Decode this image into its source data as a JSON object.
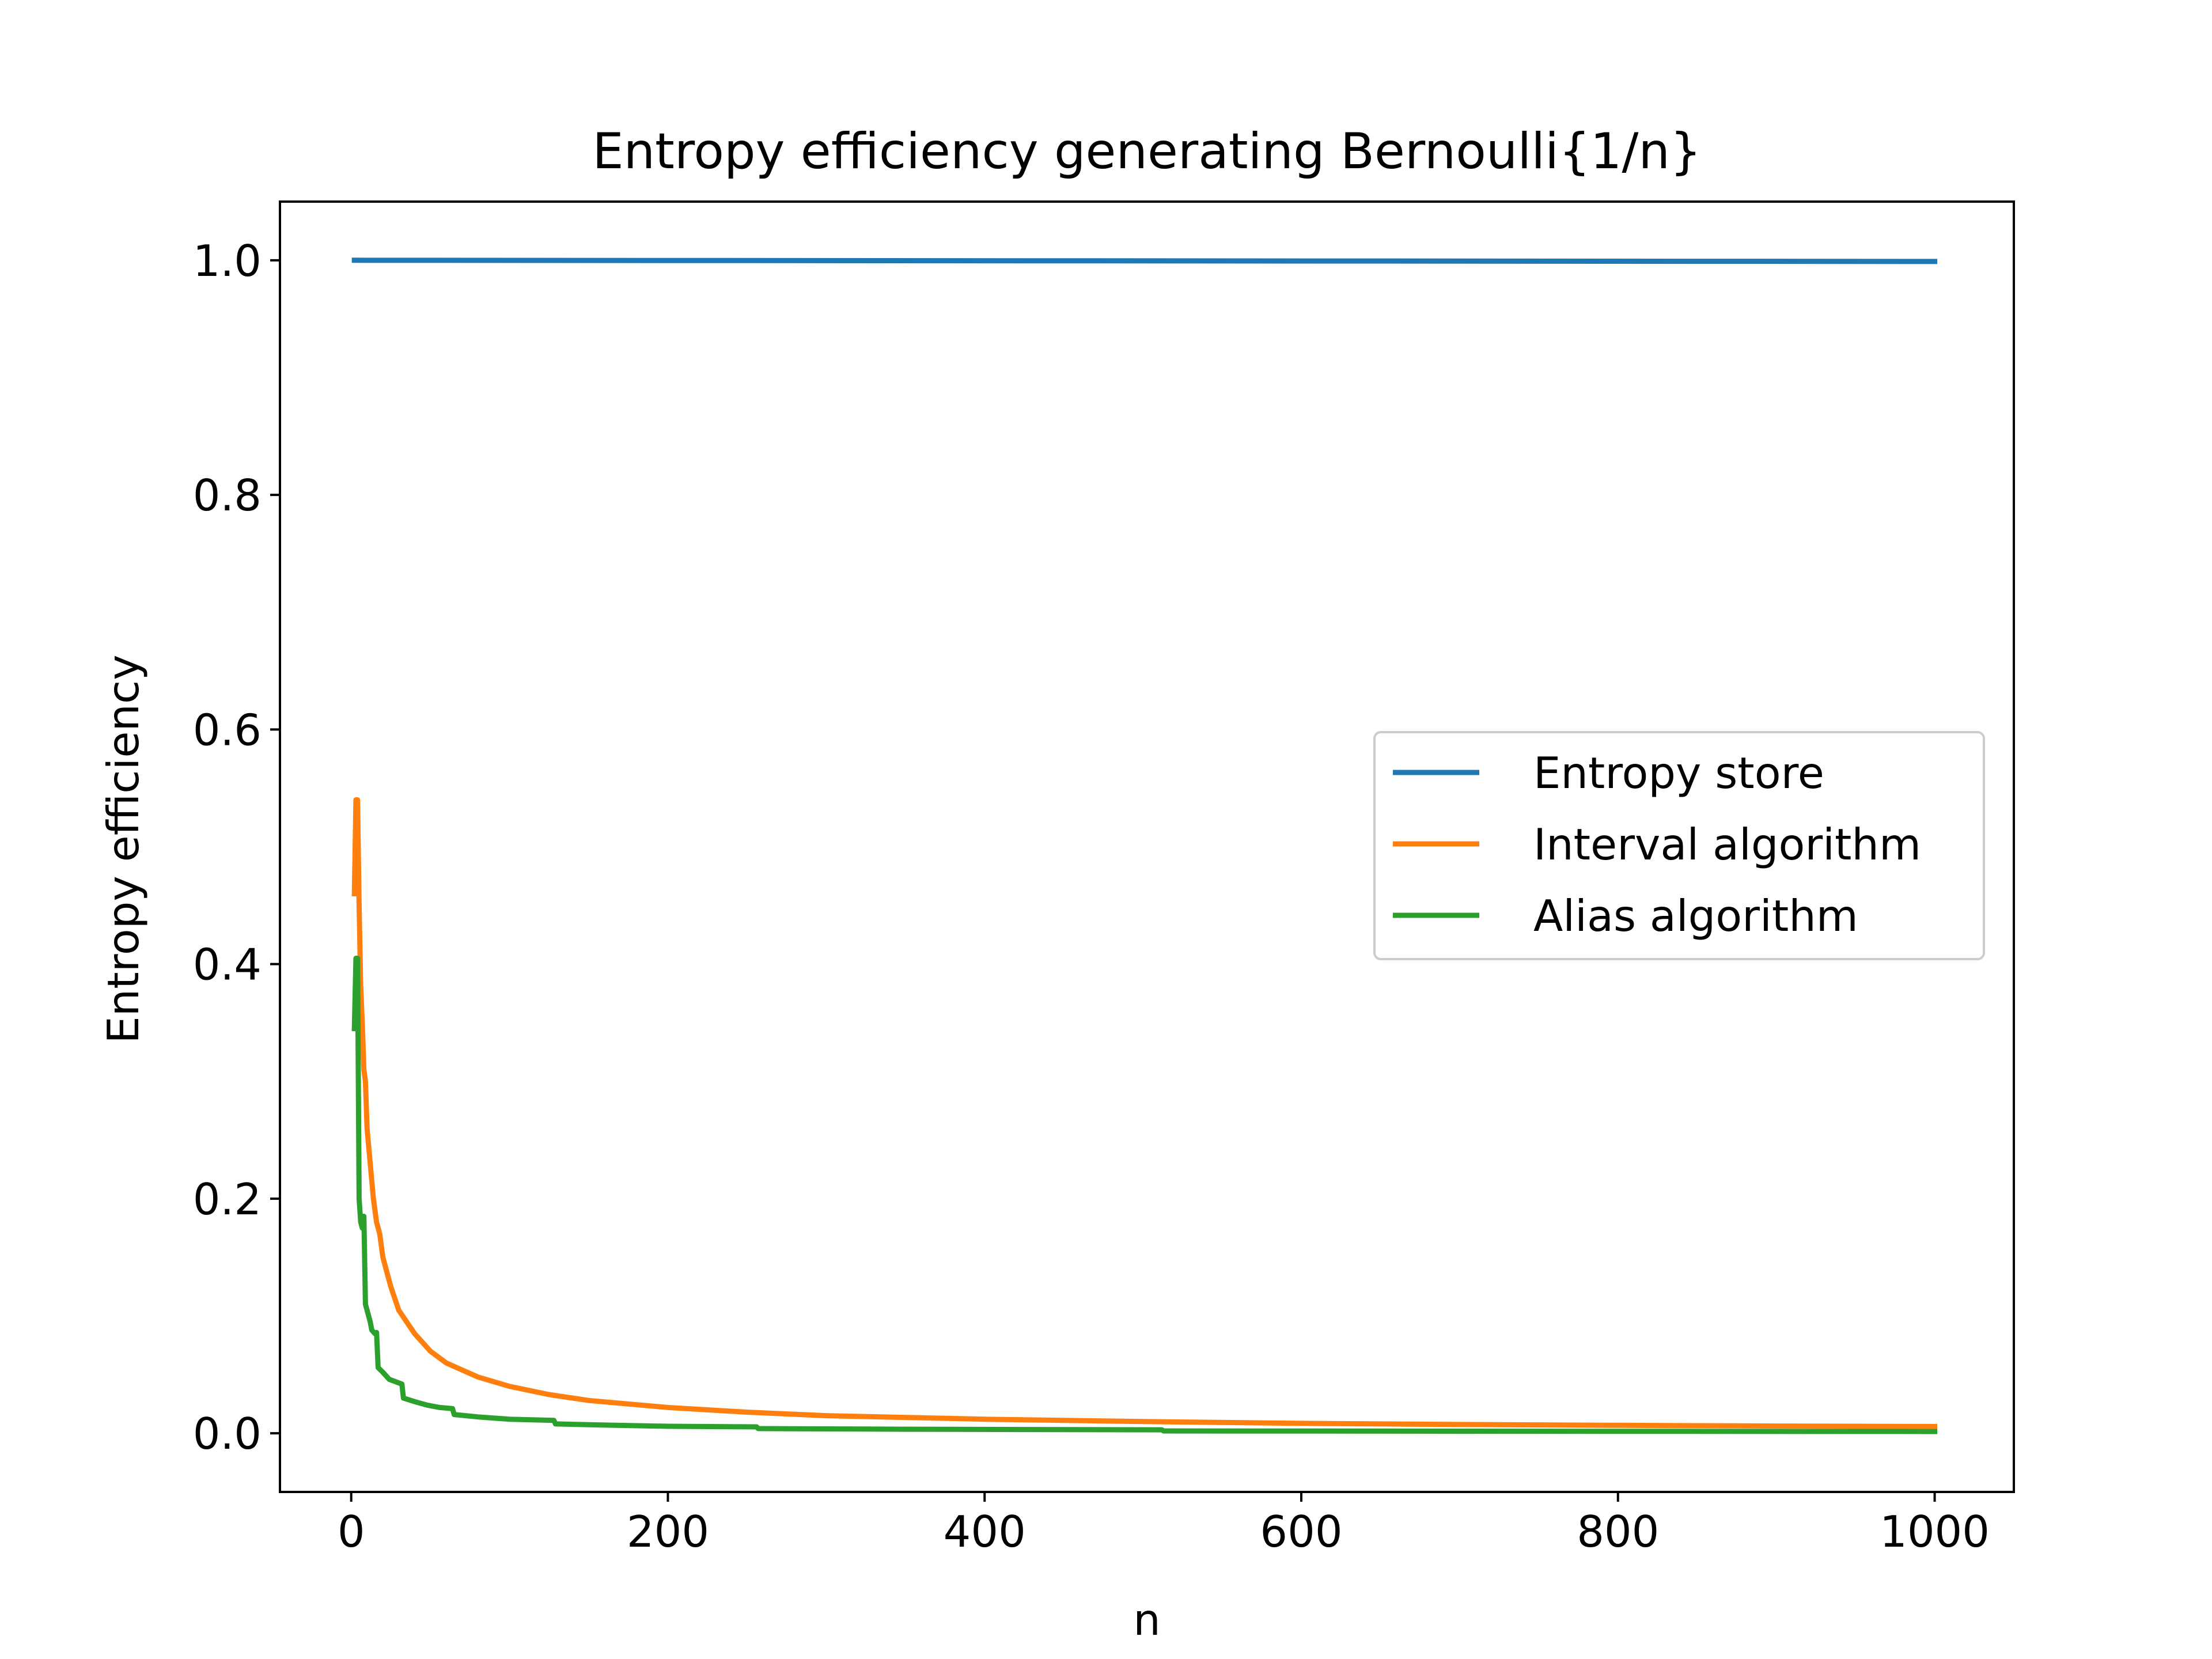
{
  "chart_data": {
    "type": "line",
    "title": "Entropy efficiency generating Bernoulli{1/n}",
    "xlabel": "n",
    "ylabel": "Entropy efficiency",
    "xlim": [
      -45,
      1050
    ],
    "ylim": [
      -0.05,
      1.05
    ],
    "xticks": [
      0,
      200,
      400,
      600,
      800,
      1000
    ],
    "xtick_labels": [
      "0",
      "200",
      "400",
      "600",
      "800",
      "1000"
    ],
    "yticks": [
      0.0,
      0.2,
      0.4,
      0.6,
      0.8,
      1.0
    ],
    "ytick_labels": [
      "0.0",
      "0.2",
      "0.4",
      "0.6",
      "0.8",
      "1.0"
    ],
    "grid": false,
    "legend_position": "center-right",
    "series": [
      {
        "name": "Entropy store",
        "color": "#1f77b4",
        "points": [
          [
            2,
            1.0
          ],
          [
            1000,
            0.999
          ]
        ]
      },
      {
        "name": "Interval algorithm",
        "color": "#ff7f0e",
        "points": [
          [
            2,
            0.46
          ],
          [
            3,
            0.54
          ],
          [
            4,
            0.54
          ],
          [
            5,
            0.45
          ],
          [
            6,
            0.38
          ],
          [
            7,
            0.35
          ],
          [
            8,
            0.31
          ],
          [
            9,
            0.3
          ],
          [
            10,
            0.26
          ],
          [
            12,
            0.23
          ],
          [
            14,
            0.2
          ],
          [
            16,
            0.18
          ],
          [
            18,
            0.17
          ],
          [
            20,
            0.15
          ],
          [
            25,
            0.125
          ],
          [
            30,
            0.105
          ],
          [
            35,
            0.095
          ],
          [
            40,
            0.085
          ],
          [
            50,
            0.07
          ],
          [
            60,
            0.06
          ],
          [
            70,
            0.054
          ],
          [
            80,
            0.048
          ],
          [
            100,
            0.04
          ],
          [
            125,
            0.033
          ],
          [
            150,
            0.028
          ],
          [
            200,
            0.022
          ],
          [
            250,
            0.018
          ],
          [
            300,
            0.015
          ],
          [
            400,
            0.012
          ],
          [
            500,
            0.01
          ],
          [
            600,
            0.0085
          ],
          [
            700,
            0.0075
          ],
          [
            800,
            0.0068
          ],
          [
            900,
            0.0062
          ],
          [
            1000,
            0.0058
          ]
        ]
      },
      {
        "name": "Alias algorithm",
        "color": "#2ca02c",
        "points": [
          [
            2,
            0.345
          ],
          [
            3,
            0.405
          ],
          [
            4,
            0.405
          ],
          [
            5,
            0.2
          ],
          [
            6,
            0.18
          ],
          [
            7,
            0.175
          ],
          [
            8,
            0.185
          ],
          [
            9,
            0.11
          ],
          [
            10,
            0.105
          ],
          [
            12,
            0.095
          ],
          [
            13,
            0.088
          ],
          [
            15,
            0.085
          ],
          [
            16,
            0.086
          ],
          [
            17,
            0.056
          ],
          [
            20,
            0.052
          ],
          [
            24,
            0.046
          ],
          [
            28,
            0.044
          ],
          [
            32,
            0.042
          ],
          [
            33,
            0.03
          ],
          [
            40,
            0.027
          ],
          [
            48,
            0.024
          ],
          [
            56,
            0.022
          ],
          [
            64,
            0.021
          ],
          [
            65,
            0.016
          ],
          [
            80,
            0.014
          ],
          [
            100,
            0.012
          ],
          [
            128,
            0.011
          ],
          [
            129,
            0.008
          ],
          [
            160,
            0.007
          ],
          [
            200,
            0.006
          ],
          [
            256,
            0.0055
          ],
          [
            257,
            0.004
          ],
          [
            350,
            0.0035
          ],
          [
            512,
            0.003
          ],
          [
            513,
            0.002
          ],
          [
            700,
            0.0018
          ],
          [
            1000,
            0.0015
          ]
        ]
      }
    ]
  }
}
